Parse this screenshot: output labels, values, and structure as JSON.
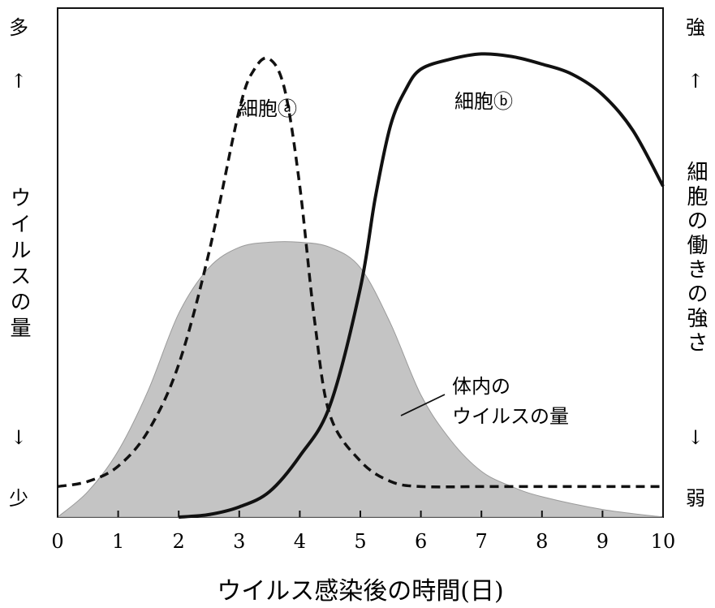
{
  "chart_data": {
    "type": "line",
    "xlabel": "ウイルス感染後の時間(日)",
    "x_ticks": [
      "0",
      "1",
      "2",
      "3",
      "4",
      "5",
      "6",
      "7",
      "8",
      "9",
      "10"
    ],
    "xlim": [
      0,
      10
    ],
    "ylim": [
      0,
      100
    ],
    "grid": false,
    "left_axis": {
      "top_label": "多",
      "arrow_up": "↑",
      "label": "ウイルスの量",
      "arrow_down": "↓",
      "bottom_label": "少"
    },
    "right_axis": {
      "top_label": "強",
      "arrow_up": "↑",
      "label": "細胞の働きの強さ",
      "arrow_down": "↓",
      "bottom_label": "弱"
    },
    "series": [
      {
        "name": "細胞ⓐ",
        "style": "dashed",
        "color": "#111111",
        "x": [
          0,
          0.5,
          1,
          1.5,
          2,
          2.5,
          3,
          3.25,
          3.5,
          3.75,
          4,
          4.25,
          4.5,
          5,
          5.5,
          6,
          7,
          8,
          9,
          10
        ],
        "y": [
          6,
          7,
          10,
          17,
          30,
          52,
          80,
          88,
          90,
          84,
          65,
          38,
          20,
          11,
          7,
          6,
          6,
          6,
          6,
          6
        ]
      },
      {
        "name": "細胞ⓑ",
        "style": "solid",
        "color": "#111111",
        "x": [
          2,
          2.5,
          3,
          3.5,
          4,
          4.5,
          5,
          5.25,
          5.5,
          5.75,
          6,
          6.5,
          7,
          7.5,
          8,
          8.5,
          9,
          9.5,
          10
        ],
        "y": [
          0,
          0.5,
          2,
          5,
          12,
          22,
          45,
          63,
          77,
          84,
          88,
          90,
          91,
          90.5,
          89,
          87,
          83,
          76,
          65
        ]
      },
      {
        "name": "体内のウイルスの量",
        "style": "area",
        "color": "#c4c4c4",
        "x": [
          0,
          0.5,
          1,
          1.5,
          2,
          2.5,
          3,
          3.5,
          4,
          4.5,
          5,
          5.5,
          6,
          6.5,
          7,
          7.5,
          8,
          9,
          10
        ],
        "y": [
          0,
          5,
          13,
          25,
          40,
          49,
          53,
          54,
          54,
          53,
          49,
          38,
          24,
          15,
          9,
          6,
          4,
          1.5,
          0
        ]
      }
    ],
    "annotations": [
      {
        "text": "細胞ⓐ",
        "target": "細胞ⓐ"
      },
      {
        "text": "細胞ⓑ",
        "target": "細胞ⓑ"
      },
      {
        "text_lines": [
          "体内の",
          "ウイルスの量"
        ],
        "target": "体内のウイルスの量"
      }
    ]
  }
}
